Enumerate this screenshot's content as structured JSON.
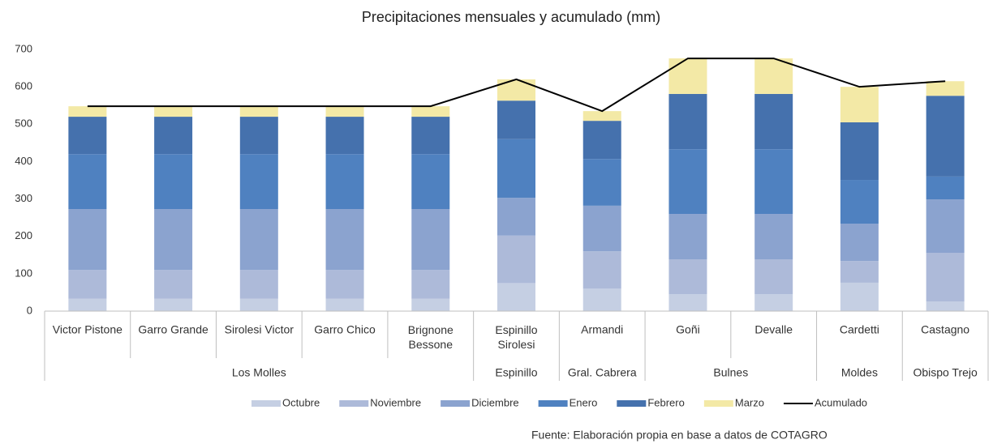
{
  "chart_data": {
    "type": "stacked-bar-line",
    "title": "Precipitaciones mensuales y acumulado (mm)",
    "categories": [
      "Victor Pistone",
      "Garro Grande",
      "Sirolesi Victor",
      "Garro Chico",
      "Brignone Bessone",
      "Espinillo Sirolesi",
      "Armandi",
      "Goñi",
      "Devalle",
      "Cardetti",
      "Castagno"
    ],
    "category_groups": [
      "Los Molles",
      null,
      null,
      null,
      null,
      "Espinillo",
      "Gral. Cabrera",
      "Bulnes",
      null,
      "Moldes",
      "Obispo Trejo"
    ],
    "series": [
      {
        "name": "Octubre",
        "color": "#c5cfe3",
        "values": [
          33,
          33,
          33,
          33,
          33,
          75,
          60,
          45,
          45,
          76,
          26
        ]
      },
      {
        "name": "Noviembre",
        "color": "#adbad9",
        "values": [
          77,
          77,
          77,
          77,
          77,
          127,
          100,
          93,
          93,
          58,
          130
        ]
      },
      {
        "name": "Diciembre",
        "color": "#8ba3cf",
        "values": [
          163,
          163,
          163,
          163,
          163,
          101,
          122,
          122,
          122,
          100,
          143
        ]
      },
      {
        "name": "Enero",
        "color": "#4f81c0",
        "values": [
          147,
          147,
          147,
          147,
          147,
          157,
          125,
          173,
          173,
          117,
          61
        ]
      },
      {
        "name": "Febrero",
        "color": "#4571ad",
        "values": [
          100,
          100,
          100,
          100,
          100,
          103,
          102,
          148,
          148,
          154,
          216
        ]
      },
      {
        "name": "Marzo",
        "color": "#f3e9a6",
        "values": [
          28,
          28,
          28,
          28,
          28,
          57,
          26,
          95,
          95,
          95,
          39
        ]
      }
    ],
    "line": {
      "name": "Acumulado",
      "color": "#000000",
      "values": [
        548,
        548,
        548,
        548,
        548,
        620,
        535,
        676,
        676,
        600,
        615
      ]
    },
    "ylim": [
      0,
      700
    ],
    "yticks": [
      0,
      100,
      200,
      300,
      400,
      500,
      600,
      700
    ],
    "legend": "bottom",
    "source": "Fuente: Elaboración propia en base a datos de COTAGRO"
  }
}
